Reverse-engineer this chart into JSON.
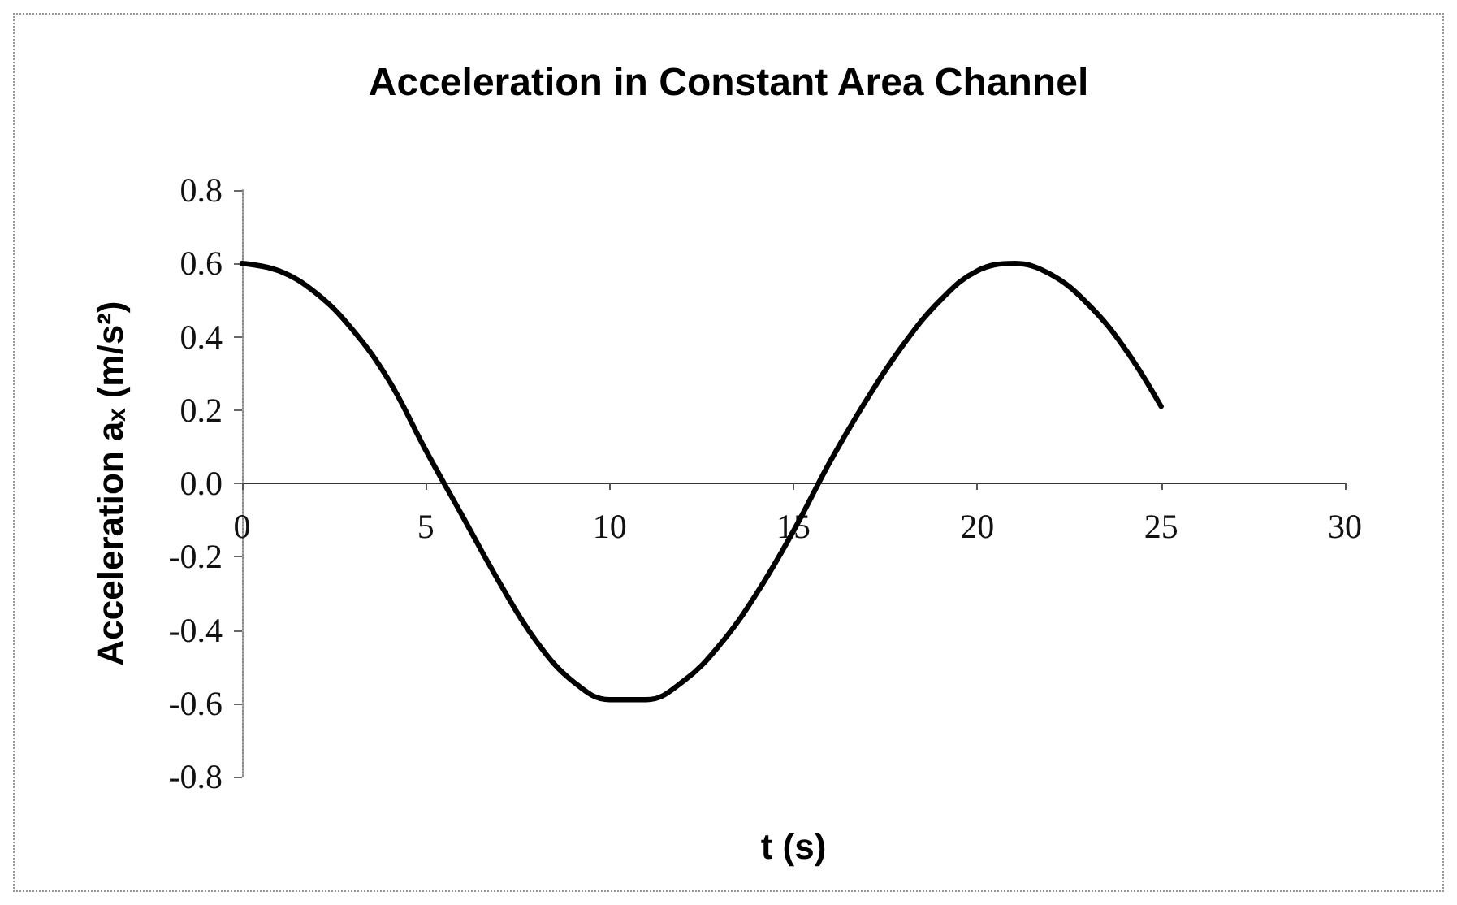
{
  "chart_data": {
    "type": "line",
    "title": "Acceleration in Constant Area Channel",
    "xlabel": "t (s)",
    "ylabel": "Acceleration aₓ (m/s²)",
    "x": [
      0,
      1,
      2,
      3,
      4,
      5,
      6,
      7,
      8,
      9,
      10,
      11,
      12,
      13,
      14,
      15,
      16,
      17,
      18,
      19,
      20,
      21,
      22,
      23,
      24,
      25
    ],
    "series": [
      {
        "color": "#000000",
        "values": [
          0.6,
          0.58,
          0.52,
          0.42,
          0.28,
          0.09,
          -0.09,
          -0.27,
          -0.43,
          -0.54,
          -0.59,
          -0.59,
          -0.54,
          -0.44,
          -0.3,
          -0.13,
          0.06,
          0.23,
          0.38,
          0.5,
          0.58,
          0.6,
          0.57,
          0.49,
          0.37,
          0.21
        ]
      }
    ],
    "xlim": [
      0,
      30
    ],
    "xticks": [
      0,
      5,
      10,
      15,
      20,
      25,
      30
    ],
    "ylim": [
      -0.8,
      0.8
    ],
    "yticks": [
      -0.8,
      -0.6,
      -0.4,
      -0.2,
      {
        "value": 0,
        "label": "0.0"
      },
      0.2,
      0.4,
      0.6,
      0.8
    ],
    "marker": "none",
    "line_style": "solid"
  }
}
